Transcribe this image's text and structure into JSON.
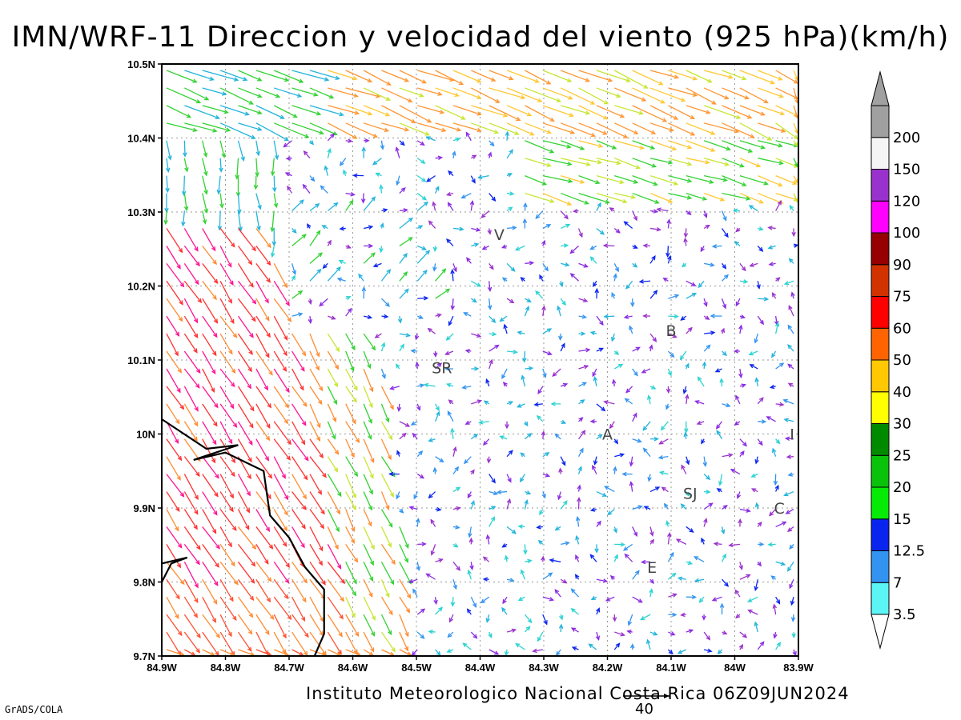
{
  "title": "IMN/WRF-11 Direccion y velocidad del viento (925 hPa)(km/h)",
  "footer": "Instituto Meteorologico Nacional Costa Rica 06Z09JUN2024",
  "grads_label": "GrADS/COLA",
  "reference_vector_label": "40",
  "map": {
    "lon_range": [
      -84.9,
      -83.9
    ],
    "lat_range": [
      9.7,
      10.5
    ],
    "x_ticks": [
      "84.9W",
      "84.8W",
      "84.7W",
      "84.6W",
      "84.5W",
      "84.4W",
      "84.3W",
      "84.2W",
      "84.1W",
      "84W",
      "83.9W"
    ],
    "y_ticks": [
      "10.5N",
      "10.4N",
      "10.3N",
      "10.2N",
      "10.1N",
      "10N",
      "9.9N",
      "9.8N",
      "9.7N"
    ],
    "grid": true,
    "cities": [
      {
        "label": "V",
        "lon": -84.37,
        "lat": 10.27
      },
      {
        "label": "B",
        "lon": -84.1,
        "lat": 10.14
      },
      {
        "label": "SR",
        "lon": -84.46,
        "lat": 10.09
      },
      {
        "label": "A",
        "lon": -84.2,
        "lat": 10.0
      },
      {
        "label": "I",
        "lon": -83.91,
        "lat": 10.0
      },
      {
        "label": "SJ",
        "lon": -84.07,
        "lat": 9.92
      },
      {
        "label": "C",
        "lon": -83.93,
        "lat": 9.9
      },
      {
        "label": "E",
        "lon": -84.13,
        "lat": 9.82
      }
    ],
    "coastline": [
      [
        -84.9,
        10.02
      ],
      [
        -84.83,
        9.98
      ],
      [
        -84.78,
        9.985
      ],
      [
        -84.85,
        9.965
      ],
      [
        -84.8,
        9.975
      ],
      [
        -84.74,
        9.95
      ],
      [
        -84.73,
        9.89
      ],
      [
        -84.7,
        9.86
      ],
      [
        -84.675,
        9.82
      ],
      [
        -84.645,
        9.79
      ],
      [
        -84.645,
        9.73
      ],
      [
        -84.66,
        9.7
      ]
    ],
    "coastline_south": [
      [
        -84.9,
        9.8
      ],
      [
        -84.885,
        9.825
      ],
      [
        -84.86,
        9.833
      ],
      [
        -84.9,
        9.825
      ]
    ]
  },
  "colorbar": {
    "labels": [
      "3.5",
      "7",
      "12.5",
      "15",
      "20",
      "25",
      "30",
      "40",
      "50",
      "60",
      "75",
      "90",
      "100",
      "120",
      "150",
      "200"
    ],
    "colors": [
      "#5cf5f5",
      "#3393f0",
      "#0a24f0",
      "#06eb06",
      "#0ac20a",
      "#008a00",
      "#ffff00",
      "#ffc800",
      "#ff6400",
      "#ff0000",
      "#d23200",
      "#960000",
      "#ff00ff",
      "#9932cc",
      "#f5f5f5",
      "#a0a0a0"
    ]
  },
  "wind_regions": {
    "description_colors": {
      "calm_mix": [
        "#8a2be2",
        "#9932cc",
        "#0a24f0",
        "#3393f0",
        "#22b4dc"
      ],
      "north_band": [
        "#ff8c32",
        "#ffa032",
        "#ffc832",
        "#c8e632",
        "#32d232"
      ],
      "west_band": [
        "#ff3232",
        "#ff1493",
        "#ff5050",
        "#ff8c32",
        "#c8e632"
      ]
    }
  }
}
